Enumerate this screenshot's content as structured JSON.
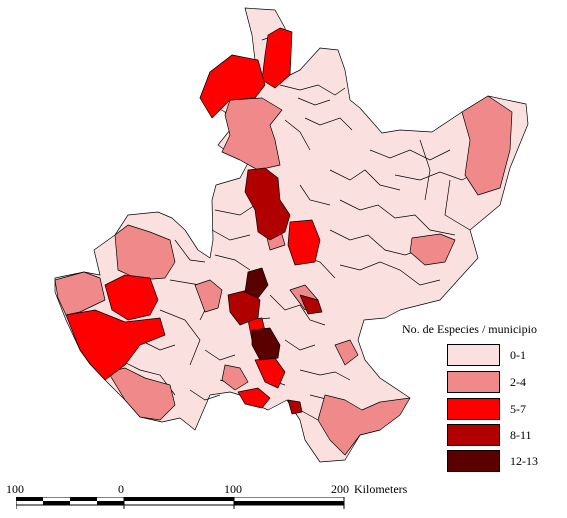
{
  "legend": {
    "title": "No. de Especies / municipio",
    "classes": [
      {
        "label": "0-1",
        "color": "#fbe0e0"
      },
      {
        "label": "2-4",
        "color": "#f08a8a"
      },
      {
        "label": "5-7",
        "color": "#ff0000"
      },
      {
        "label": "8-11",
        "color": "#b00000"
      },
      {
        "label": "12-13",
        "color": "#5a0000"
      }
    ]
  },
  "scale_bar": {
    "tick_labels": [
      "100",
      "0",
      "100",
      "200"
    ],
    "unit": "Kilometers"
  }
}
